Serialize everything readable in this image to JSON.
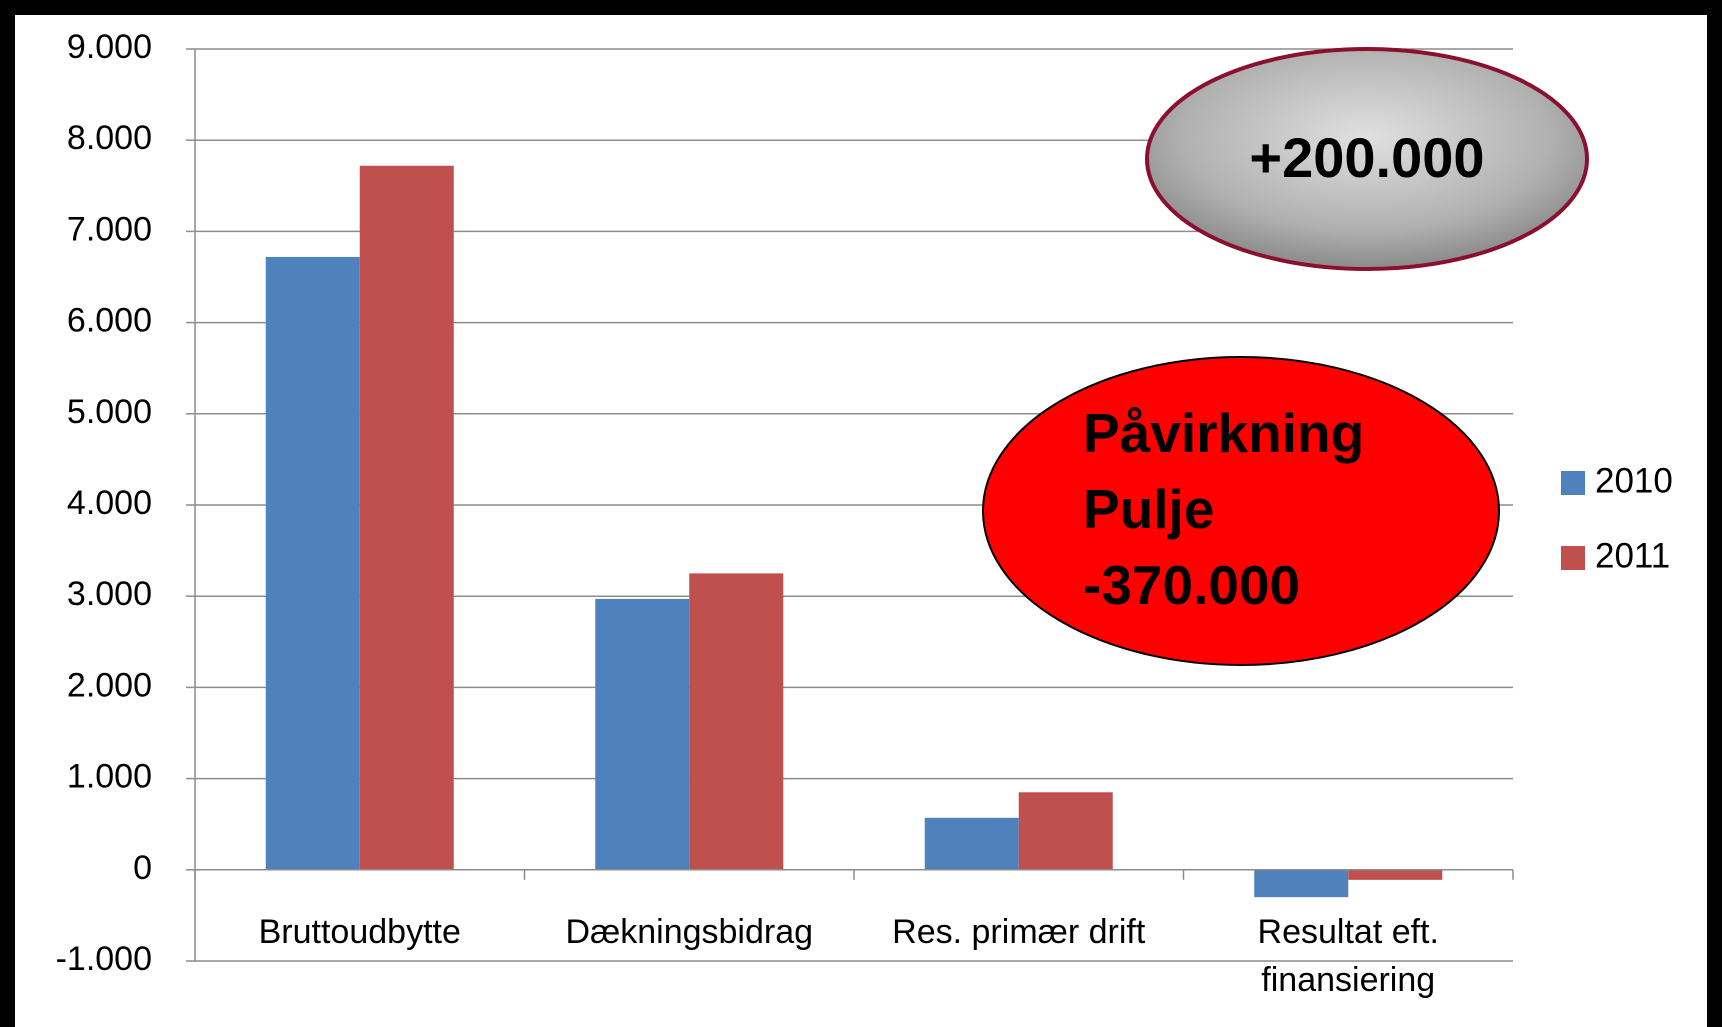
{
  "chart_data": {
    "type": "bar",
    "categories": [
      "Bruttoudbytte",
      "Dækningsbidrag",
      "Res. primær drift",
      "Resultat eft. finansiering"
    ],
    "series": [
      {
        "name": "2010",
        "color": "#4f81bd",
        "values": [
          6720,
          2970,
          570,
          -300
        ]
      },
      {
        "name": "2011",
        "color": "#c0504d",
        "values": [
          7720,
          3250,
          850,
          -110
        ]
      }
    ],
    "ylim": [
      -1000,
      9000
    ],
    "yticks": [
      {
        "value": -1000,
        "label": "-1.000"
      },
      0,
      {
        "value": 1000,
        "label": "1.000"
      },
      {
        "value": 2000,
        "label": "2.000"
      },
      {
        "value": 3000,
        "label": "3.000"
      },
      {
        "value": 4000,
        "label": "4.000"
      },
      {
        "value": 5000,
        "label": "5.000"
      },
      {
        "value": 6000,
        "label": "6.000"
      },
      {
        "value": 7000,
        "label": "7.000"
      },
      {
        "value": 8000,
        "label": "8.000"
      },
      {
        "value": 9000,
        "label": "9.000"
      }
    ],
    "grid": true,
    "legend": "right",
    "annotations": [
      "+200.000",
      "Påvirkning\nPulje\n-370.000"
    ]
  }
}
